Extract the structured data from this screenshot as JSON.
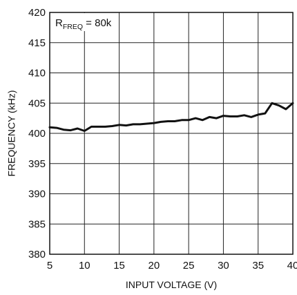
{
  "chart_data": {
    "type": "line",
    "title": "",
    "xlabel": "INPUT VOLTAGE (V)",
    "ylabel": "FREQUENCY (kHz)",
    "xlim": [
      5,
      40
    ],
    "ylim": [
      380,
      420
    ],
    "x_ticks": [
      5,
      10,
      15,
      20,
      25,
      30,
      35,
      40
    ],
    "y_ticks": [
      380,
      385,
      390,
      395,
      400,
      405,
      410,
      415,
      420
    ],
    "grid": true,
    "annotation": {
      "main": "R",
      "sub": "FREQ",
      "rest": " = 80k"
    },
    "series": [
      {
        "x": [
          5,
          6,
          7,
          8,
          9,
          10,
          11,
          12,
          13,
          14,
          15,
          16,
          17,
          18,
          19,
          20,
          21,
          22,
          23,
          24,
          25,
          26,
          27,
          28,
          29,
          30,
          31,
          32,
          33,
          34,
          35,
          36,
          37,
          38,
          39,
          40
        ],
        "values": [
          401.0,
          400.9,
          400.6,
          400.5,
          400.8,
          400.4,
          401.1,
          401.1,
          401.1,
          401.2,
          401.4,
          401.3,
          401.5,
          401.5,
          401.6,
          401.7,
          401.9,
          402.0,
          402.0,
          402.2,
          402.2,
          402.5,
          402.2,
          402.7,
          402.5,
          402.9,
          402.8,
          402.8,
          403.0,
          402.7,
          403.1,
          403.3,
          405.0,
          404.6,
          404.0,
          405.0
        ]
      }
    ]
  }
}
